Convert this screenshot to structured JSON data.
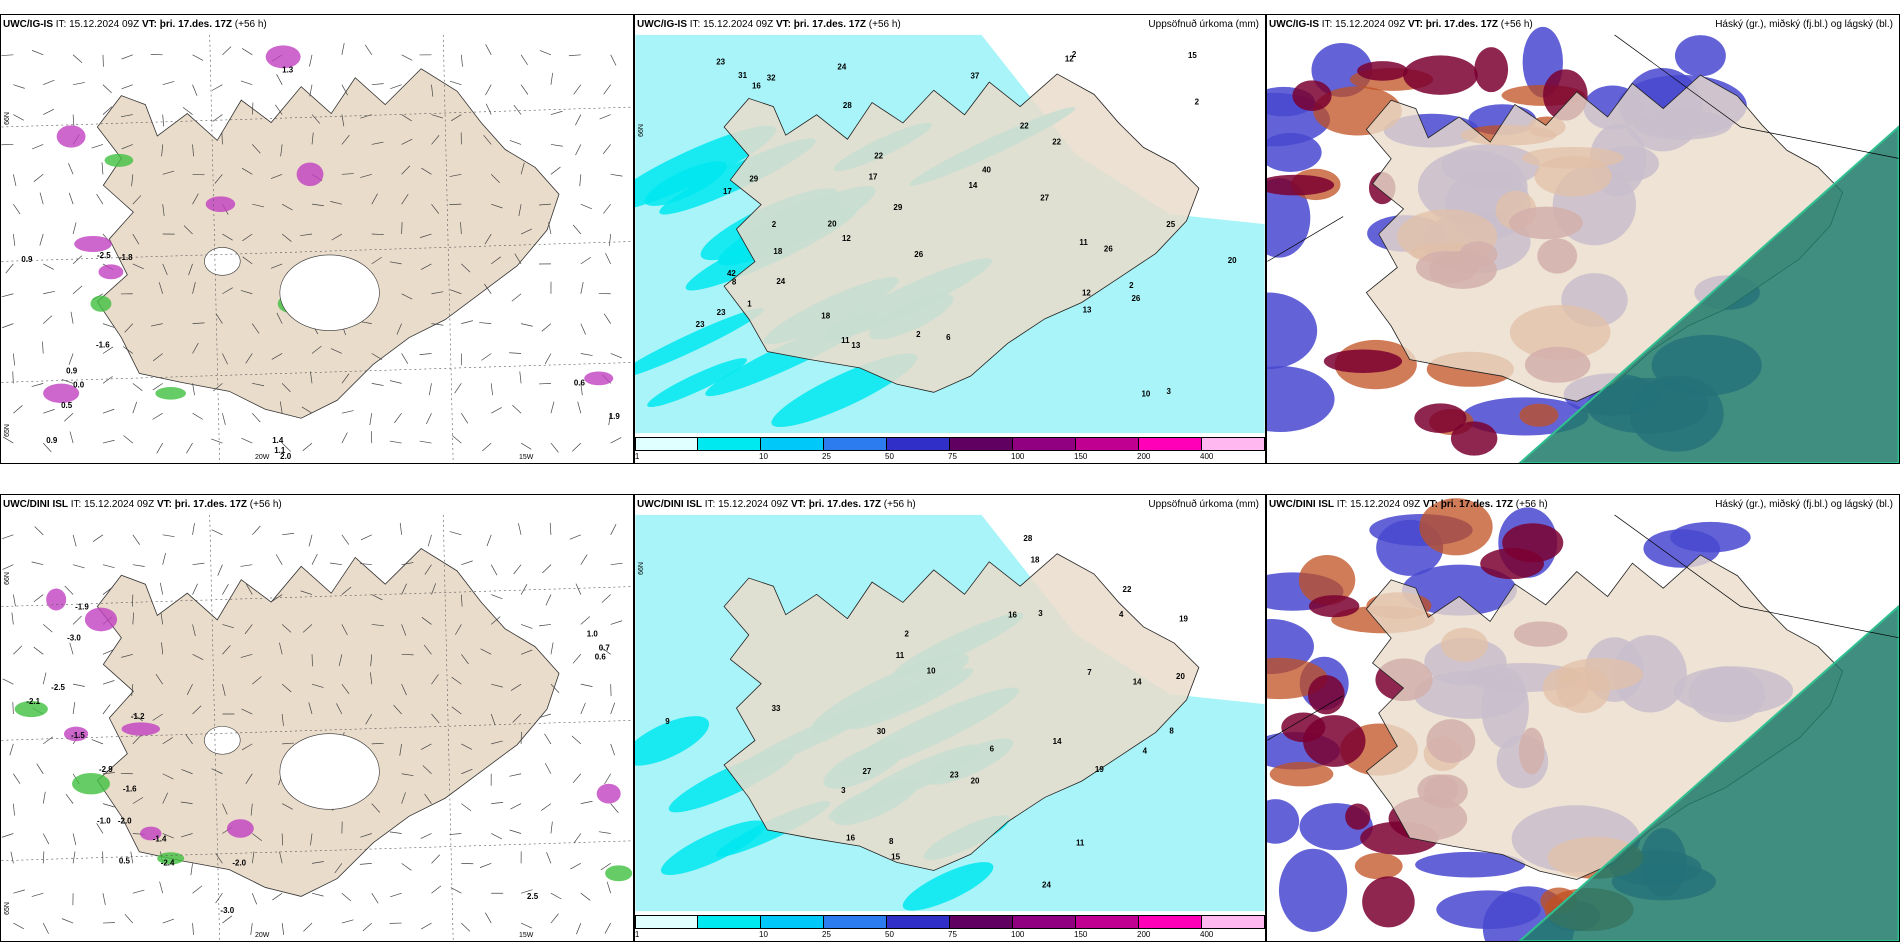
{
  "panels": [
    {
      "id": "ig-wind",
      "model": "UWC/IG-IS",
      "it": "IT: 15.12.2024 09Z",
      "vt": "VT: þri. 17.des. 17Z",
      "lead": "(+56 h)",
      "right_title": "",
      "axis": {
        "lon1": "20W",
        "lon2": "15W",
        "lat1": "66N",
        "lat2": "65N"
      },
      "values": [
        "1.3",
        "0.9",
        "-2.5",
        "-1.8",
        "-1.6",
        "0.9",
        "0.0",
        "0.5",
        "0.6",
        "1.9",
        "0.9",
        "1.4",
        "1.1",
        "2.0"
      ]
    },
    {
      "id": "ig-precip",
      "model": "UWC/IG-IS",
      "it": "IT: 15.12.2024 09Z",
      "vt": "VT: þri. 17.des. 17Z",
      "lead": "(+56 h)",
      "right_title": "Uppsöfnuð úrkoma (mm)",
      "axis": {
        "lat1": "66N",
        "lat2": "65N"
      },
      "values": [
        "17",
        "12",
        "25",
        "26",
        "12",
        "2",
        "6",
        "1",
        "2",
        "2",
        "3",
        "2",
        "2",
        "18",
        "23",
        "31",
        "27",
        "17",
        "20",
        "22",
        "15",
        "11",
        "13",
        "10",
        "22",
        "23",
        "18",
        "32",
        "26",
        "28",
        "40",
        "42",
        "37",
        "29",
        "26",
        "24",
        "20",
        "23",
        "22",
        "24",
        "29",
        "16",
        "14",
        "12",
        "8",
        "11",
        "13"
      ]
    },
    {
      "id": "ig-cloud",
      "model": "UWC/IG-IS",
      "it": "IT: 15.12.2024 09Z",
      "vt": "VT: þri. 17.des. 17Z",
      "lead": "(+56 h)",
      "right_title": "Háský (gr.), miðský (fj.bl.) og lágský (bl.)",
      "values": []
    },
    {
      "id": "dini-wind",
      "model": "UWC/DINI ISL",
      "it": "IT: 15.12.2024 09Z",
      "vt": "VT: þri. 17.des. 17Z",
      "lead": "(+56 h)",
      "right_title": "",
      "axis": {
        "lon1": "20W",
        "lon2": "15W",
        "lat1": "66N",
        "lat2": "65N"
      },
      "values": [
        "-1.9",
        "-3.0",
        "-2.5",
        "-2.1",
        "-1.5",
        "-1.2",
        "-2.9",
        "-1.6",
        "-1.0",
        "-2.0",
        "-1.4",
        "-2.0",
        "-3.0",
        "1.0",
        "0.7",
        "0.6",
        "0.5",
        "2.5",
        "-2.4"
      ]
    },
    {
      "id": "dini-precip",
      "model": "UWC/DINI ISL",
      "it": "IT: 15.12.2024 09Z",
      "vt": "VT: þri. 17.des. 17Z",
      "lead": "(+56 h)",
      "right_title": "Uppsöfnuð úrkoma (mm)",
      "axis": {
        "lat1": "66N",
        "lat2": "65N"
      },
      "values": [
        "3",
        "3",
        "2",
        "4",
        "8",
        "11",
        "22",
        "24",
        "27",
        "20",
        "16",
        "28",
        "30",
        "33",
        "19",
        "18",
        "16",
        "23",
        "14",
        "20",
        "19",
        "14",
        "11",
        "9",
        "15",
        "10",
        "6",
        "7",
        "8",
        "4"
      ]
    },
    {
      "id": "dini-cloud",
      "model": "UWC/DINI ISL",
      "it": "IT: 15.12.2024 09Z",
      "vt": "VT: þri. 17.des. 17Z",
      "lead": "(+56 h)",
      "right_title": "Háský (gr.), miðský (fj.bl.) og lágský (bl.)",
      "values": []
    }
  ],
  "colorbar": {
    "labels": [
      "1",
      "10",
      "25",
      "50",
      "75",
      "100",
      "150",
      "200",
      "400"
    ],
    "colors": [
      "#e0ffff",
      "#00e8f0",
      "#00c8f8",
      "#2c7cf0",
      "#3030c8",
      "#600060",
      "#900080",
      "#c00090",
      "#ff00b8",
      "#ffb8f0"
    ]
  },
  "colors": {
    "land": "#eadccb",
    "precip_light": "#a8f4f8",
    "precip_mid": "#00e8f0",
    "cloud_high": "#7a0030",
    "cloud_mid": "#c05020",
    "cloud_low": "#4848d0",
    "sea_cloud": "#1e7a6a",
    "snow_magenta": "#c040c0",
    "green_cell": "#40c040"
  }
}
